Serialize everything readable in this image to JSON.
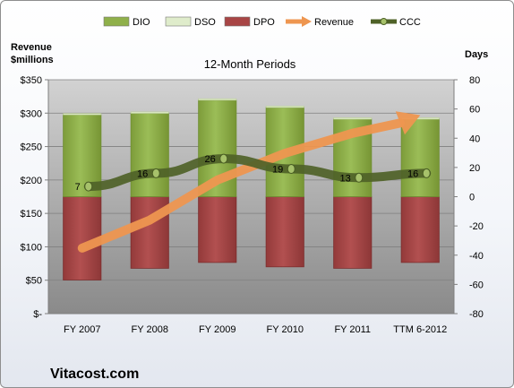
{
  "chart_data": {
    "type": "bar",
    "title": "12-Month Periods",
    "categories": [
      "FY 2007",
      "FY 2008",
      "FY 2009",
      "FY 2010",
      "FY 2011",
      "TTM 6-2012"
    ],
    "y_left": {
      "label_lines": [
        "Revenue",
        "$millions"
      ],
      "ticks": [
        "$-",
        "$50",
        "$100",
        "$150",
        "$200",
        "$250",
        "$300",
        "$350"
      ],
      "ylim": [
        0,
        350
      ]
    },
    "y_right": {
      "label": "Days",
      "ticks": [
        "-80",
        "-60",
        "-40",
        "-20",
        "0",
        "20",
        "40",
        "60",
        "80"
      ],
      "ylim": [
        -80,
        80
      ]
    },
    "legend_position": "top",
    "legend": [
      {
        "name": "DIO",
        "kind": "bar",
        "color": "#8fb04a"
      },
      {
        "name": "DSO",
        "kind": "bar",
        "color": "#dfeccb"
      },
      {
        "name": "DPO",
        "kind": "bar",
        "color": "#a84545"
      },
      {
        "name": "Revenue",
        "kind": "arrow",
        "color": "#ee9650"
      },
      {
        "name": "CCC",
        "kind": "line",
        "color": "#4f6228"
      }
    ],
    "series": [
      {
        "name": "DIO",
        "axis": "right",
        "values": [
          56,
          57,
          66,
          61,
          53,
          53
        ]
      },
      {
        "name": "DSO",
        "axis": "right",
        "values": [
          1,
          1,
          1,
          1,
          1,
          1
        ]
      },
      {
        "name": "DPO",
        "axis": "right",
        "values": [
          -57,
          -49,
          -45,
          -48,
          -49,
          -45
        ]
      },
      {
        "name": "Revenue",
        "axis": "left",
        "values": [
          98,
          140,
          200,
          240,
          270,
          297
        ]
      },
      {
        "name": "CCC",
        "axis": "right",
        "values": [
          7,
          16,
          26,
          19,
          13,
          16
        ]
      }
    ],
    "ccc_labels": [
      "7",
      "16",
      "26",
      "19",
      "13",
      "16"
    ],
    "colors": {
      "plot_top": "#d2d2d2",
      "plot_bottom": "#8a8a8a",
      "dio": "#8fb04a",
      "dio_edge": "#6f8f32",
      "dso": "#dfeccb",
      "dpo": "#a84545",
      "dpo_edge": "#7d2e2e",
      "revenue": "#ee9650",
      "ccc": "#4f6228"
    }
  },
  "footer": {
    "company": "Vitacost.com"
  }
}
